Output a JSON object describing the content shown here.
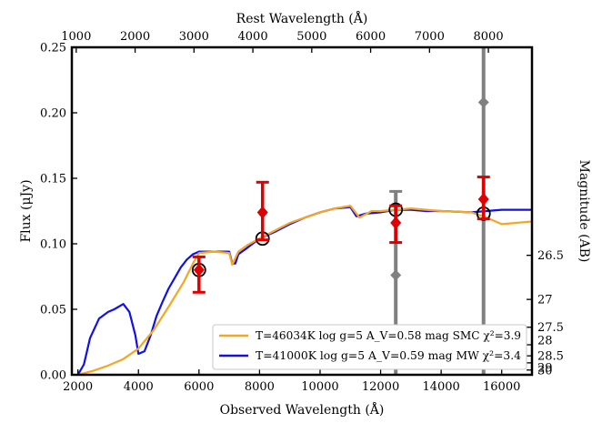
{
  "chart_data": {
    "type": "scatter",
    "title": "",
    "xlabel": "Observed Wavelength (Å)",
    "ylabel": "Flux (μJy)",
    "top_xlabel": "Rest Wavelength (Å)",
    "right_ylabel": "Magnitude (AB)",
    "xlim": [
      1800,
      17000
    ],
    "ylim": [
      0,
      0.25
    ],
    "rest_factor": 1.945,
    "grid": false,
    "x_ticks": [
      2000,
      4000,
      6000,
      8000,
      10000,
      12000,
      14000,
      16000
    ],
    "x_tick_labels": [
      "2000",
      "4000",
      "6000",
      "8000",
      "10000",
      "12000",
      "14000",
      "16000"
    ],
    "y_ticks": [
      0,
      0.05,
      0.1,
      0.15,
      0.2,
      0.25
    ],
    "y_tick_labels": [
      "0.00",
      "0.05",
      "0.10",
      "0.15",
      "0.20",
      "0.25"
    ],
    "top_ticks": [
      1000,
      2000,
      3000,
      4000,
      5000,
      6000,
      7000,
      8000
    ],
    "top_tick_labels": [
      "1000",
      "2000",
      "3000",
      "4000",
      "5000",
      "6000",
      "7000",
      "8000"
    ],
    "right_ticks": [
      26.5,
      27,
      27.5,
      28,
      28.5,
      29,
      30
    ],
    "right_tick_labels": [
      "26.5",
      "27",
      "27.5",
      "28",
      "28.5",
      "29",
      "30"
    ],
    "series": [
      {
        "name": "T=41000K log g=5 A_V=0.59 mag MW χ²=3.4",
        "color": "#1010ee",
        "x": [
          2000,
          2200,
          2400,
          2700,
          3000,
          3200,
          3500,
          3700,
          3900,
          4000,
          4200,
          4400,
          4600,
          4800,
          5000,
          5200,
          5400,
          5600,
          5800,
          6000,
          6400,
          6800,
          7000,
          7100,
          7200,
          7300,
          7600,
          8000,
          8500,
          9000,
          9500,
          10000,
          10500,
          11000,
          11200,
          11500,
          12000,
          12500,
          13000,
          13500,
          14000,
          15000,
          16000,
          17000
        ],
        "y": [
          0.0,
          0.008,
          0.028,
          0.043,
          0.048,
          0.05,
          0.054,
          0.048,
          0.03,
          0.016,
          0.018,
          0.03,
          0.045,
          0.056,
          0.066,
          0.074,
          0.082,
          0.088,
          0.092,
          0.094,
          0.094,
          0.094,
          0.094,
          0.085,
          0.085,
          0.092,
          0.097,
          0.104,
          0.109,
          0.115,
          0.12,
          0.124,
          0.127,
          0.128,
          0.121,
          0.123,
          0.124,
          0.126,
          0.126,
          0.125,
          0.125,
          0.124,
          0.126,
          0.126
        ]
      },
      {
        "name": "T=46034K log g=5 A_V=0.58 mag SMC χ²=3.9",
        "color": "#f5a623",
        "x": [
          2000,
          2500,
          3000,
          3500,
          4000,
          4500,
          5000,
          5500,
          5800,
          6000,
          6500,
          7000,
          7100,
          7300,
          7600,
          8000,
          8500,
          9000,
          9500,
          10000,
          10500,
          11000,
          11300,
          11700,
          12000,
          12500,
          13000,
          13500,
          14000,
          15000,
          15500,
          16000,
          17000
        ],
        "y": [
          0.0,
          0.003,
          0.007,
          0.012,
          0.02,
          0.034,
          0.052,
          0.071,
          0.085,
          0.093,
          0.094,
          0.093,
          0.084,
          0.094,
          0.099,
          0.104,
          0.11,
          0.116,
          0.12,
          0.124,
          0.127,
          0.129,
          0.12,
          0.125,
          0.125,
          0.126,
          0.127,
          0.126,
          0.125,
          0.124,
          0.12,
          0.115,
          0.117
        ]
      }
    ],
    "observations": [
      {
        "x": 6000,
        "y": 0.08,
        "err_lo": 0.063,
        "err_hi": 0.09,
        "color": "#e00000"
      },
      {
        "x": 8100,
        "y": 0.124,
        "err_lo": 0.103,
        "err_hi": 0.147,
        "color": "#e00000"
      },
      {
        "x": 12500,
        "y": 0.116,
        "err_lo": 0.101,
        "err_hi": 0.129,
        "color": "#e00000"
      },
      {
        "x": 15400,
        "y": 0.134,
        "err_lo": 0.119,
        "err_hi": 0.151,
        "color": "#e00000"
      }
    ],
    "gray_points": [
      {
        "x": 12500,
        "y": 0.076,
        "err_lo": 0.0,
        "err_hi": 0.14,
        "color": "#808080"
      },
      {
        "x": 15400,
        "y": 0.208,
        "err_lo": 0.0,
        "err_hi": 0.25,
        "color": "#808080"
      }
    ],
    "model_points": [
      {
        "x": 6000,
        "y": 0.08
      },
      {
        "x": 8100,
        "y": 0.104
      },
      {
        "x": 12500,
        "y": 0.126
      },
      {
        "x": 15400,
        "y": 0.123
      }
    ],
    "legend": {
      "placement": "bottom-right",
      "entries": [
        {
          "label": "T=46034K log g=5 A_V=0.58 mag SMC χ²=3.9",
          "color": "#f5a623"
        },
        {
          "label": "T=41000K log g=5 A_V=0.59 mag MW χ²=3.4",
          "color": "#1010ee"
        }
      ]
    }
  }
}
